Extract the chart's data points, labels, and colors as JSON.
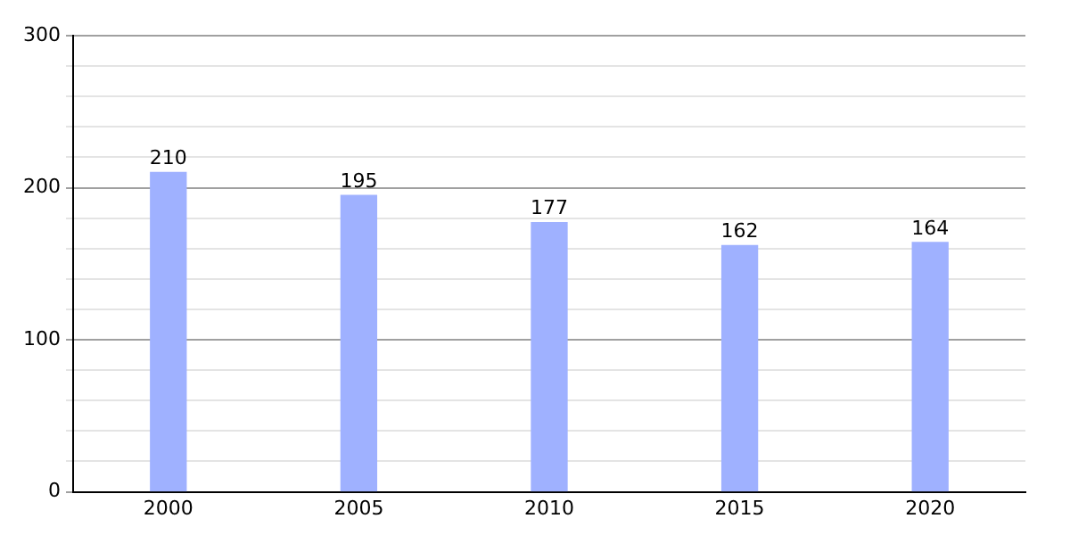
{
  "chart_data": {
    "type": "bar",
    "categories": [
      "2000",
      "2005",
      "2010",
      "2015",
      "2020"
    ],
    "values": [
      210,
      195,
      177,
      162,
      164
    ],
    "color": "#9fb1ff",
    "data_labels": true,
    "grid": "y",
    "ylim": [
      0,
      300
    ],
    "yticks": [
      0,
      {
        "value": 20,
        "label": null
      },
      {
        "value": 40,
        "label": null
      },
      {
        "value": 60,
        "label": null
      },
      {
        "value": 80,
        "label": null
      },
      100,
      {
        "value": 120,
        "label": null
      },
      {
        "value": 140,
        "label": null
      },
      {
        "value": 160,
        "label": null
      },
      {
        "value": 180,
        "label": null
      },
      200,
      {
        "value": 220,
        "label": null
      },
      {
        "value": 240,
        "label": null
      },
      {
        "value": 260,
        "label": null
      },
      {
        "value": 280,
        "label": null
      },
      300
    ]
  }
}
